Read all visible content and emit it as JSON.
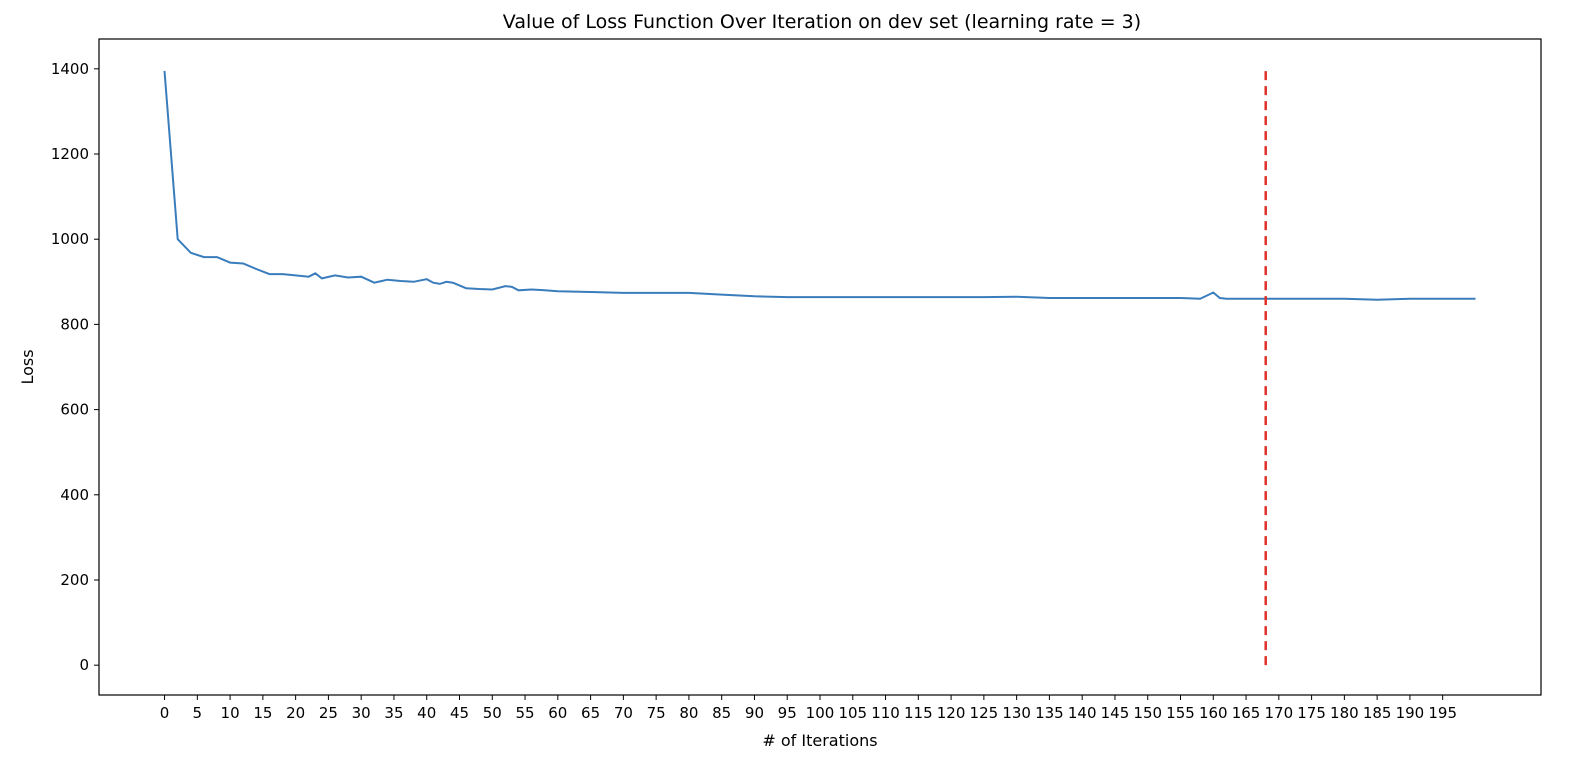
{
  "chart_data": {
    "type": "line",
    "title": "Value of Loss Function Over Iteration on dev set (learning rate = 3)",
    "xlabel": "# of Iterations",
    "ylabel": "Loss",
    "xlim": [
      -10,
      210
    ],
    "ylim": [
      -70,
      1470
    ],
    "x_ticks": [
      0,
      5,
      10,
      15,
      20,
      25,
      30,
      35,
      40,
      45,
      50,
      55,
      60,
      65,
      70,
      75,
      80,
      85,
      90,
      95,
      100,
      105,
      110,
      115,
      120,
      125,
      130,
      135,
      140,
      145,
      150,
      155,
      160,
      165,
      170,
      175,
      180,
      185,
      190,
      195
    ],
    "y_ticks": [
      0,
      200,
      400,
      600,
      800,
      1000,
      1200,
      1400
    ],
    "grid": false,
    "legend": "none",
    "colors": {
      "series": "#3a7dbd",
      "marker": "#e0302a",
      "frame": "#000000"
    },
    "series": [
      {
        "x": [
          0,
          2,
          4,
          6,
          8,
          10,
          12,
          14,
          16,
          18,
          20,
          22,
          23,
          24,
          26,
          28,
          30,
          32,
          34,
          36,
          38,
          40,
          41,
          42,
          43,
          44,
          46,
          48,
          50,
          52,
          53,
          54,
          56,
          58,
          60,
          65,
          70,
          75,
          80,
          85,
          90,
          95,
          100,
          105,
          110,
          115,
          120,
          125,
          130,
          135,
          140,
          145,
          150,
          155,
          158,
          160,
          161,
          162,
          165,
          170,
          175,
          180,
          185,
          190,
          195,
          200
        ],
        "y": [
          1395,
          1000,
          968,
          958,
          958,
          945,
          943,
          930,
          918,
          918,
          915,
          912,
          920,
          908,
          915,
          910,
          912,
          898,
          905,
          902,
          900,
          906,
          898,
          895,
          900,
          898,
          885,
          883,
          882,
          890,
          888,
          880,
          882,
          880,
          878,
          876,
          874,
          874,
          874,
          870,
          866,
          864,
          864,
          864,
          864,
          864,
          864,
          864,
          865,
          862,
          862,
          862,
          862,
          862,
          860,
          875,
          862,
          860,
          860,
          860,
          860,
          860,
          858,
          860,
          860,
          860
        ]
      }
    ],
    "annotations": [
      {
        "type": "vertical-dashed-line",
        "x": 168,
        "y_range": [
          0,
          1395
        ]
      }
    ]
  }
}
